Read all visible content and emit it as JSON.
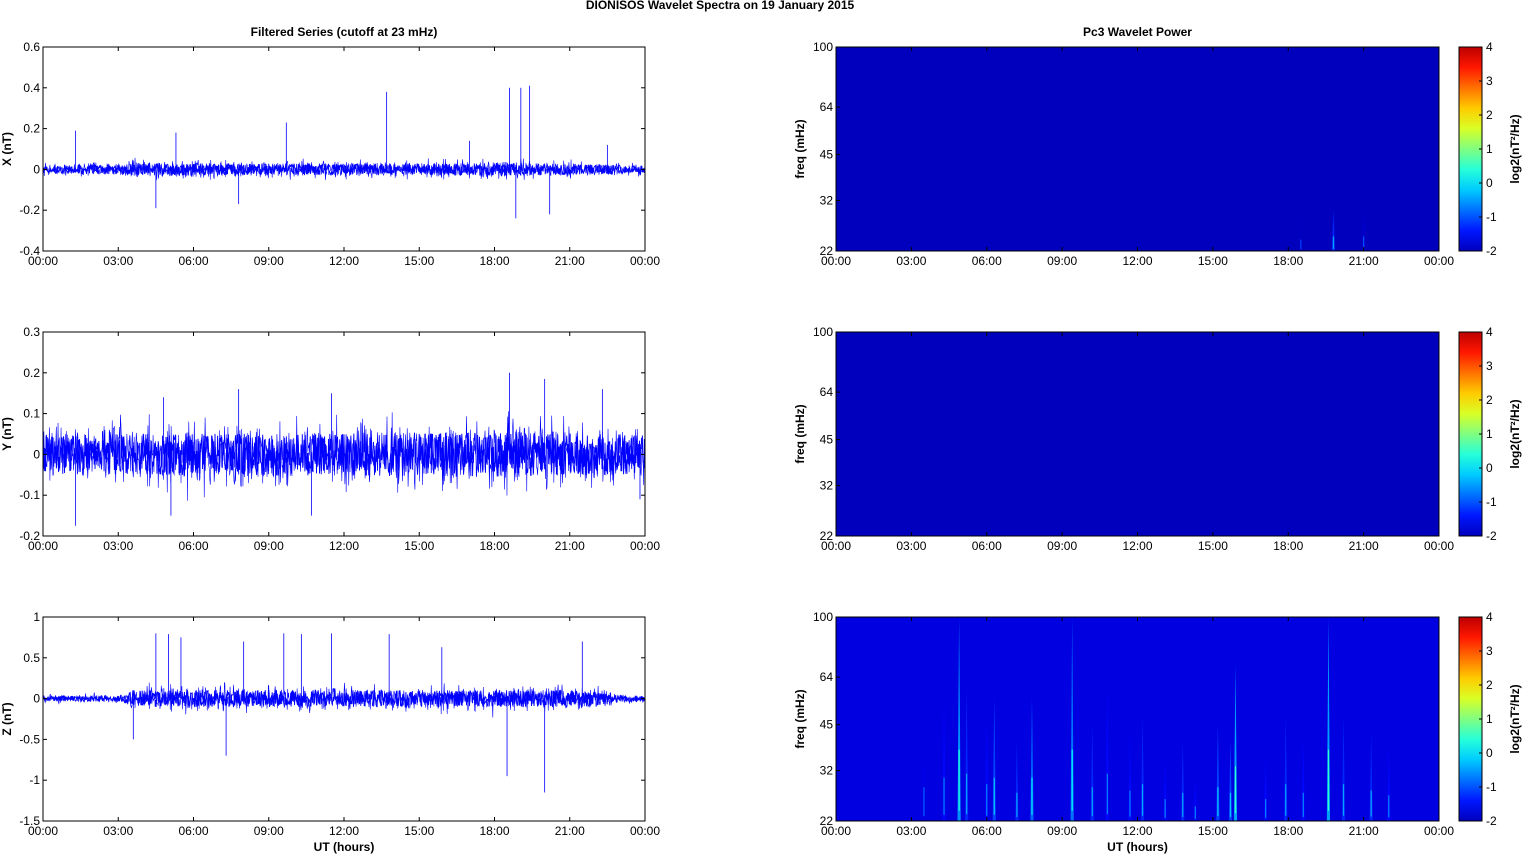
{
  "figure": {
    "title": "DIONISOS Wavelet Spectra on 19 January   2015"
  },
  "colors": {
    "trace": "#0000ff",
    "power_floor": "#00008f",
    "axis": "#000000"
  },
  "chart_data": [
    {
      "type": "line",
      "name": "x-series",
      "title": "Filtered Series (cutoff at 23 mHz)",
      "xlabel": "",
      "ylabel": "X (nT)",
      "ylim": [
        -0.4,
        0.6
      ],
      "yticks": [
        "0.6",
        "0.4",
        "0.2",
        "0",
        "-0.2",
        "-0.4"
      ],
      "xticks": [
        "00:00",
        "03:00",
        "06:00",
        "09:00",
        "12:00",
        "15:00",
        "18:00",
        "21:00",
        "00:00"
      ],
      "xlim_hours": [
        0,
        24
      ],
      "noise_band": [
        [
          0,
          0.025
        ],
        [
          3,
          0.03
        ],
        [
          4.5,
          0.04
        ],
        [
          9,
          0.035
        ],
        [
          15,
          0.035
        ],
        [
          18.5,
          0.04
        ],
        [
          20,
          0.035
        ],
        [
          22,
          0.03
        ],
        [
          24,
          0.025
        ]
      ],
      "spikes": [
        [
          1.3,
          0.19
        ],
        [
          4.5,
          -0.19
        ],
        [
          5.3,
          0.18
        ],
        [
          7.8,
          -0.17
        ],
        [
          9.7,
          0.23
        ],
        [
          13.7,
          0.38
        ],
        [
          18.6,
          0.4
        ],
        [
          18.85,
          -0.24
        ],
        [
          19.05,
          0.4
        ],
        [
          19.4,
          0.41
        ],
        [
          20.2,
          -0.22
        ],
        [
          17,
          0.14
        ],
        [
          22.5,
          0.12
        ]
      ]
    },
    {
      "type": "line",
      "name": "y-series",
      "title": "",
      "xlabel": "",
      "ylabel": "Y (nT)",
      "ylim": [
        -0.2,
        0.3
      ],
      "yticks": [
        "0.3",
        "0.2",
        "0.1",
        "0",
        "-0.1",
        "-0.2"
      ],
      "xticks": [
        "00:00",
        "03:00",
        "06:00",
        "09:00",
        "12:00",
        "15:00",
        "18:00",
        "21:00",
        "00:00"
      ],
      "xlim_hours": [
        0,
        24
      ],
      "noise_band": [
        [
          0,
          0.06
        ],
        [
          6,
          0.065
        ],
        [
          12,
          0.065
        ],
        [
          18,
          0.07
        ],
        [
          24,
          0.06
        ]
      ],
      "spikes": [
        [
          1.3,
          -0.175
        ],
        [
          4.8,
          0.14
        ],
        [
          5.1,
          -0.15
        ],
        [
          7.8,
          0.16
        ],
        [
          10.7,
          -0.15
        ],
        [
          11.5,
          0.15
        ],
        [
          18.6,
          0.2
        ],
        [
          20,
          0.185
        ],
        [
          22.3,
          0.16
        ],
        [
          23.8,
          -0.11
        ]
      ]
    },
    {
      "type": "line",
      "name": "z-series",
      "title": "",
      "xlabel": "UT (hours)",
      "ylabel": "Z (nT)",
      "ylim": [
        -1.5,
        1
      ],
      "yticks": [
        "1",
        "0.5",
        "0",
        "-0.5",
        "-1",
        "-1.5"
      ],
      "xticks": [
        "00:00",
        "03:00",
        "06:00",
        "09:00",
        "12:00",
        "15:00",
        "18:00",
        "21:00",
        "00:00"
      ],
      "xlim_hours": [
        0,
        24
      ],
      "noise_band": [
        [
          0,
          0.04
        ],
        [
          3.2,
          0.05
        ],
        [
          3.6,
          0.13
        ],
        [
          9,
          0.13
        ],
        [
          15,
          0.13
        ],
        [
          21,
          0.13
        ],
        [
          22.3,
          0.1
        ],
        [
          23,
          0.05
        ],
        [
          24,
          0.04
        ]
      ],
      "spikes": [
        [
          4.5,
          0.8
        ],
        [
          5,
          0.79
        ],
        [
          5.5,
          0.75
        ],
        [
          7.3,
          -0.7
        ],
        [
          9.6,
          0.8
        ],
        [
          10.3,
          0.79
        ],
        [
          11.5,
          0.8
        ],
        [
          13.8,
          0.79
        ],
        [
          15.9,
          0.63
        ],
        [
          18.5,
          -0.95
        ],
        [
          20,
          -1.15
        ],
        [
          21.5,
          0.7
        ],
        [
          3.6,
          -0.5
        ],
        [
          8,
          0.7
        ]
      ]
    },
    {
      "type": "heatmap",
      "name": "x-power",
      "title": "Pc3 Wavelet Power",
      "xlabel": "",
      "ylabel": "freq (mHz)",
      "yticks": [
        "100",
        "64",
        "45",
        "32",
        "22"
      ],
      "ylim_mhz": [
        22,
        100
      ],
      "yscale": "log",
      "xticks": [
        "00:00",
        "03:00",
        "06:00",
        "09:00",
        "12:00",
        "15:00",
        "18:00",
        "21:00",
        "00:00"
      ],
      "colorbar": {
        "label": "log2(nT²/Hz)",
        "ticks": [
          "4",
          "3",
          "2",
          "1",
          "0",
          "-1",
          "-2"
        ],
        "range": [
          -2,
          4
        ]
      },
      "floor": -2,
      "bursts": [
        [
          18.5,
          28,
          -1.6
        ],
        [
          19.8,
          30,
          -1
        ],
        [
          21,
          30,
          -1.5
        ]
      ]
    },
    {
      "type": "heatmap",
      "name": "y-power",
      "title": "",
      "xlabel": "",
      "ylabel": "freq (mHz)",
      "yticks": [
        "100",
        "64",
        "45",
        "32",
        "22"
      ],
      "ylim_mhz": [
        22,
        100
      ],
      "yscale": "log",
      "xticks": [
        "00:00",
        "03:00",
        "06:00",
        "09:00",
        "12:00",
        "15:00",
        "18:00",
        "21:00",
        "00:00"
      ],
      "colorbar": {
        "label": "log2(nT²/Hz)",
        "ticks": [
          "4",
          "3",
          "2",
          "1",
          "0",
          "-1",
          "-2"
        ],
        "range": [
          -2,
          4
        ]
      },
      "floor": -2,
      "bursts": []
    },
    {
      "type": "heatmap",
      "name": "z-power",
      "title": "",
      "xlabel": "UT (hours)",
      "ylabel": "freq (mHz)",
      "yticks": [
        "100",
        "64",
        "45",
        "32",
        "22"
      ],
      "ylim_mhz": [
        22,
        100
      ],
      "yscale": "log",
      "xticks": [
        "00:00",
        "03:00",
        "06:00",
        "09:00",
        "12:00",
        "15:00",
        "18:00",
        "21:00",
        "00:00"
      ],
      "colorbar": {
        "label": "log2(nT²/Hz)",
        "ticks": [
          "4",
          "3",
          "2",
          "1",
          "0",
          "-1",
          "-2"
        ],
        "range": [
          -2,
          4
        ]
      },
      "floor": -1.7,
      "bursts": [
        [
          3.5,
          45,
          -1.4
        ],
        [
          4.3,
          55,
          -1.2
        ],
        [
          4.9,
          100,
          -0.3
        ],
        [
          5.2,
          60,
          -1
        ],
        [
          6,
          48,
          -1.2
        ],
        [
          6.3,
          55,
          -0.8
        ],
        [
          7.2,
          40,
          -1
        ],
        [
          7.8,
          55,
          -0.6
        ],
        [
          9.4,
          100,
          -0.5
        ],
        [
          10.2,
          45,
          -1
        ],
        [
          10.8,
          60,
          -1.2
        ],
        [
          11.7,
          42,
          -1.2
        ],
        [
          12.2,
          48,
          -1
        ],
        [
          13.1,
          35,
          -1.2
        ],
        [
          13.8,
          40,
          -1
        ],
        [
          14.3,
          30,
          -1.2
        ],
        [
          15.2,
          45,
          -0.8
        ],
        [
          15.7,
          40,
          -0.8
        ],
        [
          15.9,
          70,
          -0.2
        ],
        [
          17.1,
          35,
          -1.2
        ],
        [
          17.9,
          48,
          -1
        ],
        [
          18.6,
          40,
          -1.2
        ],
        [
          19.6,
          100,
          -0.2
        ],
        [
          20.2,
          48,
          -1
        ],
        [
          21.3,
          42,
          -1
        ],
        [
          22,
          38,
          -1.2
        ]
      ]
    }
  ]
}
